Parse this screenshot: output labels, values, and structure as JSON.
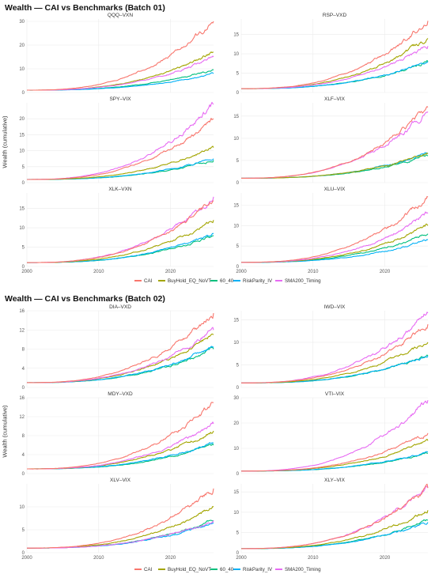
{
  "batches": [
    {
      "title": "Wealth — CAI vs Benchmarks (Batch 01)",
      "ylabel": "Wealth (cumulative)",
      "legend": [
        "CAI",
        "BuyHold_EQ_NoVT",
        "60_40",
        "RiskParity_IV",
        "SMA200_Timing"
      ]
    },
    {
      "title": "Wealth — CAI vs Benchmarks (Batch 02)",
      "ylabel": "Wealth (cumulative)",
      "legend": [
        "CAI",
        "BuyHold_EQ_NoVT",
        "60_40",
        "RiskParity_IV",
        "SMA200_Timing"
      ]
    }
  ],
  "colors": {
    "CAI": "#F8766D",
    "BuyHold_EQ_NoVT": "#A3A500",
    "60_40": "#00BF7D",
    "RiskParity_IV": "#00B0F6",
    "SMA200_Timing": "#E76BF3"
  },
  "chart_data": [
    {
      "type": "line",
      "title": "QQQ–VXN",
      "x_ticks": [
        "2000",
        "2010",
        "2020"
      ],
      "xlim": [
        2000,
        2026
      ],
      "y_ticks": [
        0,
        10,
        20,
        30
      ],
      "ylim": [
        0,
        31
      ],
      "series": [
        {
          "name": "CAI",
          "end": 30
        },
        {
          "name": "BuyHold_EQ_NoVT",
          "end": 17
        },
        {
          "name": "60_40",
          "end": 9.5
        },
        {
          "name": "RiskParity_IV",
          "end": 8
        },
        {
          "name": "SMA200_Timing",
          "end": 15
        }
      ]
    },
    {
      "type": "line",
      "title": "RSP–VXD",
      "x_ticks": [
        "2000",
        "2010",
        "2020"
      ],
      "xlim": [
        2000,
        2026
      ],
      "y_ticks": [
        0,
        5,
        10,
        15
      ],
      "ylim": [
        0,
        19
      ],
      "series": [
        {
          "name": "CAI",
          "end": 18.5
        },
        {
          "name": "BuyHold_EQ_NoVT",
          "end": 14
        },
        {
          "name": "60_40",
          "end": 8
        },
        {
          "name": "RiskParity_IV",
          "end": 8
        },
        {
          "name": "SMA200_Timing",
          "end": 12
        }
      ]
    },
    {
      "type": "line",
      "title": "SPY–VIX",
      "x_ticks": [
        "2000",
        "2010",
        "2020"
      ],
      "xlim": [
        2000,
        2026
      ],
      "y_ticks": [
        0,
        5,
        10,
        15,
        20
      ],
      "ylim": [
        0,
        25
      ],
      "series": [
        {
          "name": "CAI",
          "end": 20
        },
        {
          "name": "BuyHold_EQ_NoVT",
          "end": 11
        },
        {
          "name": "60_40",
          "end": 7
        },
        {
          "name": "RiskParity_IV",
          "end": 7.5
        },
        {
          "name": "SMA200_Timing",
          "end": 24.5
        }
      ]
    },
    {
      "type": "line",
      "title": "XLF–VIX",
      "x_ticks": [
        "2000",
        "2010",
        "2020"
      ],
      "xlim": [
        2000,
        2026
      ],
      "y_ticks": [
        0,
        5,
        10,
        15
      ],
      "ylim": [
        0,
        18
      ],
      "series": [
        {
          "name": "CAI",
          "end": 17
        },
        {
          "name": "BuyHold_EQ_NoVT",
          "end": 6.5
        },
        {
          "name": "60_40",
          "end": 6
        },
        {
          "name": "RiskParity_IV",
          "end": 6.5
        },
        {
          "name": "SMA200_Timing",
          "end": 16
        }
      ]
    },
    {
      "type": "line",
      "title": "XLK–VXN",
      "x_ticks": [
        "2000",
        "2010",
        "2020"
      ],
      "xlim": [
        2000,
        2026
      ],
      "y_ticks": [
        0,
        5,
        10,
        15
      ],
      "ylim": [
        0,
        19
      ],
      "series": [
        {
          "name": "CAI",
          "end": 17
        },
        {
          "name": "BuyHold_EQ_NoVT",
          "end": 12
        },
        {
          "name": "60_40",
          "end": 8
        },
        {
          "name": "RiskParity_IV",
          "end": 8.5
        },
        {
          "name": "SMA200_Timing",
          "end": 18
        }
      ]
    },
    {
      "type": "line",
      "title": "XLU–VIX",
      "x_ticks": [
        "2000",
        "2010",
        "2020"
      ],
      "xlim": [
        2000,
        2026
      ],
      "y_ticks": [
        0,
        5,
        10,
        15
      ],
      "ylim": [
        0,
        18
      ],
      "series": [
        {
          "name": "CAI",
          "end": 17
        },
        {
          "name": "BuyHold_EQ_NoVT",
          "end": 10
        },
        {
          "name": "60_40",
          "end": 8
        },
        {
          "name": "RiskParity_IV",
          "end": 6.5
        },
        {
          "name": "SMA200_Timing",
          "end": 13
        }
      ]
    },
    {
      "type": "line",
      "title": "DIA–VXD",
      "x_ticks": [
        "2000",
        "2010",
        "2020"
      ],
      "xlim": [
        2000,
        2026
      ],
      "y_ticks": [
        0,
        4,
        8,
        12,
        16
      ],
      "ylim": [
        0,
        16
      ],
      "series": [
        {
          "name": "CAI",
          "end": 15.5
        },
        {
          "name": "BuyHold_EQ_NoVT",
          "end": 11
        },
        {
          "name": "60_40",
          "end": 8
        },
        {
          "name": "RiskParity_IV",
          "end": 8.5
        },
        {
          "name": "SMA200_Timing",
          "end": 12
        }
      ]
    },
    {
      "type": "line",
      "title": "IWD–VIX",
      "x_ticks": [
        "2000",
        "2010",
        "2020"
      ],
      "xlim": [
        2000,
        2026
      ],
      "y_ticks": [
        0,
        5,
        10,
        15
      ],
      "ylim": [
        0,
        17
      ],
      "series": [
        {
          "name": "CAI",
          "end": 14
        },
        {
          "name": "BuyHold_EQ_NoVT",
          "end": 10
        },
        {
          "name": "60_40",
          "end": 7
        },
        {
          "name": "RiskParity_IV",
          "end": 7
        },
        {
          "name": "SMA200_Timing",
          "end": 16.5
        }
      ]
    },
    {
      "type": "line",
      "title": "MDY–VXD",
      "x_ticks": [
        "2000",
        "2010",
        "2020"
      ],
      "xlim": [
        2000,
        2026
      ],
      "y_ticks": [
        0,
        4,
        8,
        12,
        16
      ],
      "ylim": [
        0,
        16
      ],
      "series": [
        {
          "name": "CAI",
          "end": 15
        },
        {
          "name": "BuyHold_EQ_NoVT",
          "end": 9
        },
        {
          "name": "60_40",
          "end": 6
        },
        {
          "name": "RiskParity_IV",
          "end": 6.5
        },
        {
          "name": "SMA200_Timing",
          "end": 10.5
        }
      ]
    },
    {
      "type": "line",
      "title": "VTI–VIX",
      "x_ticks": [
        "2000",
        "2010",
        "2020"
      ],
      "xlim": [
        2000,
        2026
      ],
      "y_ticks": [
        0,
        10,
        20,
        30
      ],
      "ylim": [
        0,
        30
      ],
      "series": [
        {
          "name": "CAI",
          "end": 16
        },
        {
          "name": "BuyHold_EQ_NoVT",
          "end": 13
        },
        {
          "name": "60_40",
          "end": 8
        },
        {
          "name": "RiskParity_IV",
          "end": 8.5
        },
        {
          "name": "SMA200_Timing",
          "end": 29
        }
      ]
    },
    {
      "type": "line",
      "title": "XLV–VIX",
      "x_ticks": [
        "2000",
        "2010",
        "2020"
      ],
      "xlim": [
        2000,
        2026
      ],
      "y_ticks": [
        0,
        5,
        10
      ],
      "ylim": [
        0,
        15
      ],
      "series": [
        {
          "name": "CAI",
          "end": 14
        },
        {
          "name": "BuyHold_EQ_NoVT",
          "end": 10
        },
        {
          "name": "60_40",
          "end": 7
        },
        {
          "name": "RiskParity_IV",
          "end": 6.5
        },
        {
          "name": "SMA200_Timing",
          "end": 7
        }
      ]
    },
    {
      "type": "line",
      "title": "XLY–VIX",
      "x_ticks": [
        "2000",
        "2010",
        "2020"
      ],
      "xlim": [
        2000,
        2026
      ],
      "y_ticks": [
        0,
        5,
        10,
        15
      ],
      "ylim": [
        0,
        17
      ],
      "series": [
        {
          "name": "CAI",
          "end": 16
        },
        {
          "name": "BuyHold_EQ_NoVT",
          "end": 10.5
        },
        {
          "name": "60_40",
          "end": 8
        },
        {
          "name": "RiskParity_IV",
          "end": 7.5
        },
        {
          "name": "SMA200_Timing",
          "end": 16
        }
      ]
    }
  ]
}
